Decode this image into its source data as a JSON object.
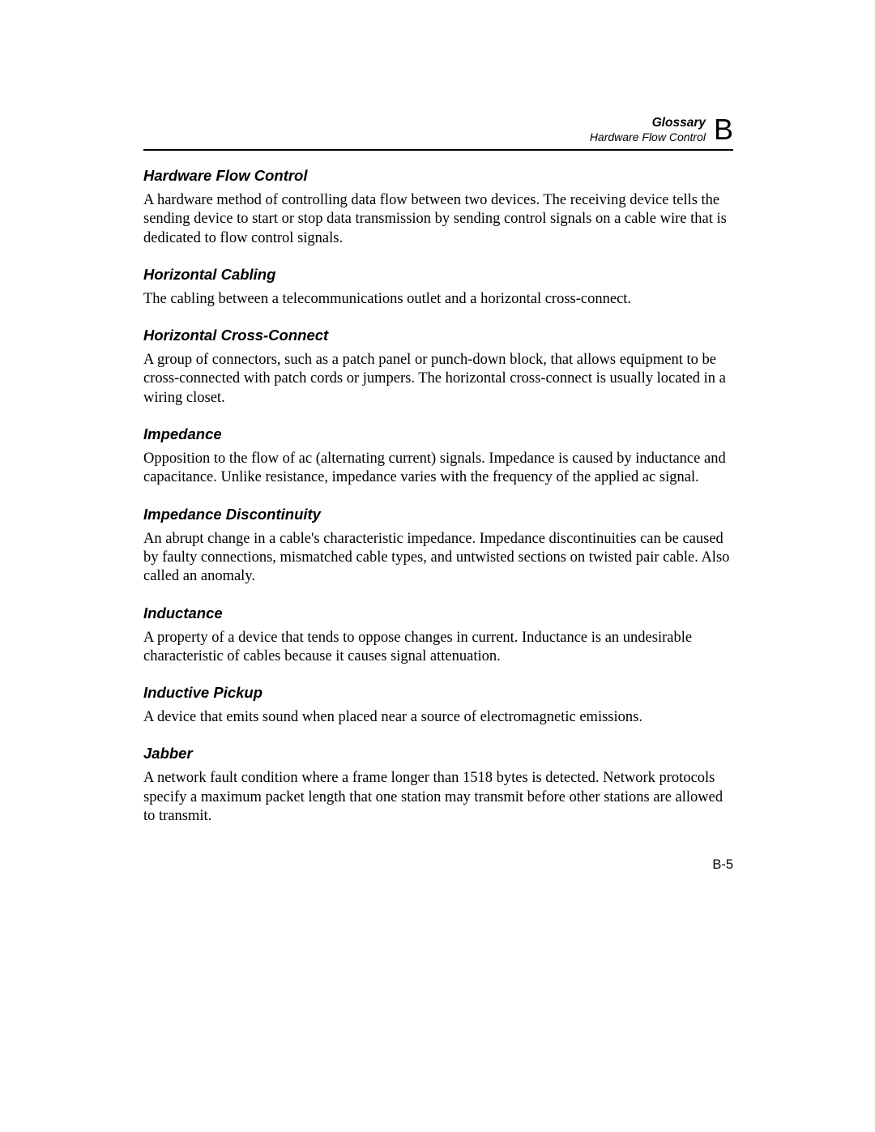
{
  "header": {
    "title": "Glossary",
    "subtitle": "Hardware Flow Control",
    "appendix_letter": "B"
  },
  "entries": [
    {
      "term": "Hardware Flow Control",
      "definition": "A hardware method of controlling data flow between two devices. The receiving device tells the sending device to start or stop data transmission by sending control signals on a cable wire that is dedicated to flow control signals."
    },
    {
      "term": "Horizontal Cabling",
      "definition": "The cabling between a telecommunications outlet and a horizontal cross-connect."
    },
    {
      "term": "Horizontal Cross-Connect",
      "definition": "A group of connectors, such as a patch panel or punch-down block, that allows equipment to be cross-connected with patch cords or jumpers. The horizontal cross-connect is usually located in a wiring closet."
    },
    {
      "term": "Impedance",
      "definition": "Opposition to the flow of ac (alternating current) signals. Impedance is caused by inductance and capacitance. Unlike resistance, impedance varies with the frequency of the applied ac signal."
    },
    {
      "term": "Impedance Discontinuity",
      "definition": "An abrupt change in a cable's characteristic impedance. Impedance discontinuities can be caused by faulty connections, mismatched cable types, and untwisted sections on twisted pair cable. Also called an anomaly."
    },
    {
      "term": "Inductance",
      "definition": "A property of a device that tends to oppose changes in current. Inductance is an undesirable characteristic of cables because it causes signal attenuation."
    },
    {
      "term": "Inductive Pickup",
      "definition": "A device that emits sound when placed near a source of electromagnetic emissions."
    },
    {
      "term": "Jabber",
      "definition": "A network fault condition where a frame longer than 1518 bytes is detected. Network protocols specify a maximum packet length that one station may transmit before other stations are allowed to transmit."
    }
  ],
  "page_number": "B-5",
  "colors": {
    "text": "#000000",
    "background": "#ffffff",
    "border": "#000000"
  },
  "typography": {
    "heading_font": "Arial",
    "body_font": "Times New Roman",
    "term_fontsize": 18.5,
    "definition_fontsize": 18.5,
    "header_title_fontsize": 15.5,
    "header_subtitle_fontsize": 14,
    "appendix_letter_fontsize": 36,
    "page_number_fontsize": 16.5
  }
}
